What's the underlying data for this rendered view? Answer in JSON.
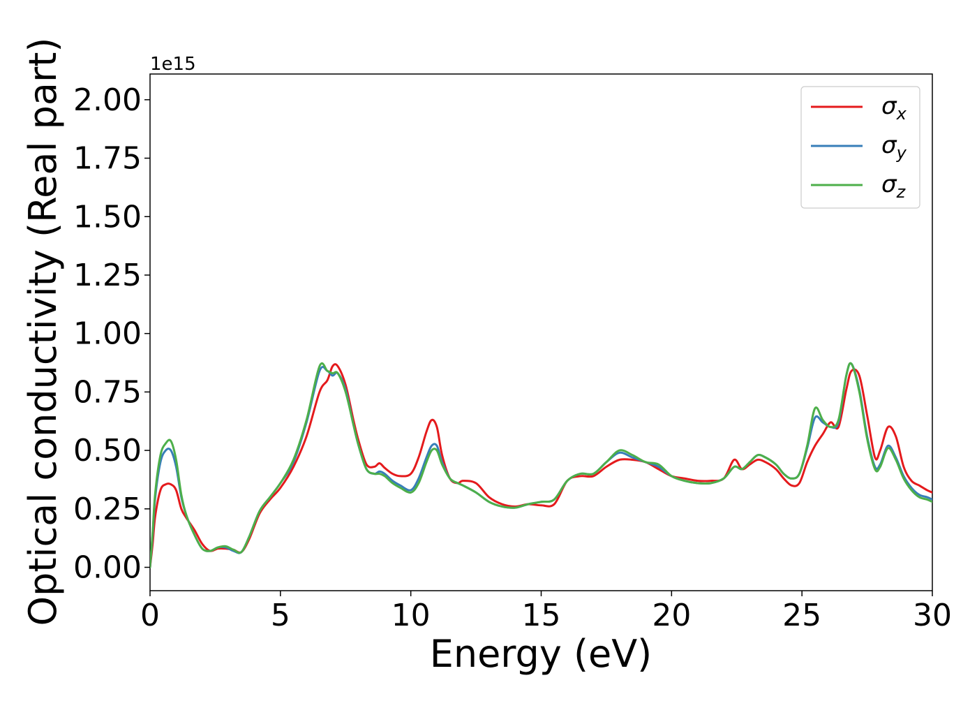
{
  "chart_data": {
    "type": "line",
    "title": "",
    "xlabel": "Energy (eV)",
    "ylabel": "Optical conductivity (Real part)",
    "y_offset_text": "1e15",
    "xlim": [
      0,
      30
    ],
    "ylim": [
      -0.1,
      2.11
    ],
    "x_ticks": [
      0,
      5,
      10,
      15,
      20,
      25,
      30
    ],
    "x_tick_labels": [
      "0",
      "5",
      "10",
      "15",
      "20",
      "25",
      "30"
    ],
    "y_ticks": [
      0,
      0.25,
      0.5,
      0.75,
      1.0,
      1.25,
      1.5,
      1.75,
      2.0
    ],
    "y_tick_labels": [
      "0.00",
      "0.25",
      "0.50",
      "0.75",
      "1.00",
      "1.25",
      "1.50",
      "1.75",
      "2.00"
    ],
    "grid": false,
    "legend_position": "top-right",
    "series": [
      {
        "name": "σx",
        "legend_base": "σ",
        "legend_sub": "x",
        "color": "#e41a1c",
        "x": [
          0,
          0.1,
          0.2,
          0.4,
          0.6,
          0.8,
          1.0,
          1.2,
          1.4,
          1.7,
          2.0,
          2.3,
          2.6,
          2.9,
          3.2,
          3.5,
          3.8,
          4.2,
          4.6,
          5.0,
          5.5,
          6.0,
          6.5,
          6.8,
          7.0,
          7.2,
          7.5,
          7.8,
          8.0,
          8.3,
          8.6,
          8.8,
          9.0,
          9.3,
          9.6,
          10.0,
          10.3,
          10.6,
          10.8,
          11.0,
          11.2,
          11.5,
          11.8,
          12.0,
          12.5,
          13.0,
          13.5,
          14.0,
          14.5,
          15.0,
          15.5,
          16.0,
          16.5,
          17.0,
          17.5,
          18.0,
          18.5,
          19.0,
          19.5,
          20.0,
          20.5,
          21.0,
          21.5,
          22.0,
          22.4,
          22.7,
          23.0,
          23.3,
          23.6,
          24.0,
          24.3,
          24.6,
          24.9,
          25.2,
          25.5,
          25.8,
          26.1,
          26.4,
          26.7,
          26.9,
          27.2,
          27.5,
          27.8,
          28.0,
          28.3,
          28.6,
          28.9,
          29.2,
          29.5,
          29.8,
          30.0
        ],
        "values": [
          0,
          0.1,
          0.22,
          0.33,
          0.355,
          0.355,
          0.33,
          0.25,
          0.21,
          0.16,
          0.1,
          0.07,
          0.08,
          0.08,
          0.075,
          0.065,
          0.12,
          0.23,
          0.29,
          0.34,
          0.43,
          0.56,
          0.75,
          0.8,
          0.86,
          0.86,
          0.78,
          0.63,
          0.54,
          0.44,
          0.43,
          0.445,
          0.425,
          0.4,
          0.39,
          0.4,
          0.47,
          0.58,
          0.63,
          0.6,
          0.48,
          0.38,
          0.36,
          0.37,
          0.36,
          0.3,
          0.27,
          0.26,
          0.27,
          0.265,
          0.27,
          0.37,
          0.39,
          0.39,
          0.43,
          0.46,
          0.46,
          0.45,
          0.42,
          0.39,
          0.38,
          0.37,
          0.37,
          0.38,
          0.46,
          0.42,
          0.44,
          0.46,
          0.45,
          0.42,
          0.38,
          0.35,
          0.36,
          0.45,
          0.52,
          0.57,
          0.62,
          0.6,
          0.76,
          0.84,
          0.82,
          0.65,
          0.47,
          0.5,
          0.6,
          0.56,
          0.43,
          0.37,
          0.35,
          0.33,
          0.32
        ]
      },
      {
        "name": "σy",
        "legend_base": "σ",
        "legend_sub": "y",
        "color": "#377eb8",
        "x": [
          0,
          0.1,
          0.2,
          0.4,
          0.6,
          0.8,
          1.0,
          1.2,
          1.4,
          1.7,
          2.0,
          2.3,
          2.6,
          2.9,
          3.2,
          3.5,
          3.8,
          4.2,
          4.6,
          5.0,
          5.5,
          6.0,
          6.5,
          6.8,
          7.0,
          7.2,
          7.5,
          7.8,
          8.0,
          8.3,
          8.6,
          8.8,
          9.0,
          9.3,
          9.6,
          10.0,
          10.3,
          10.6,
          10.8,
          11.0,
          11.2,
          11.5,
          11.8,
          12.0,
          12.5,
          13.0,
          13.5,
          14.0,
          14.5,
          15.0,
          15.5,
          16.0,
          16.5,
          17.0,
          17.5,
          18.0,
          18.5,
          19.0,
          19.5,
          20.0,
          20.5,
          21.0,
          21.5,
          22.0,
          22.4,
          22.7,
          23.0,
          23.3,
          23.6,
          24.0,
          24.3,
          24.6,
          24.9,
          25.2,
          25.5,
          25.8,
          26.1,
          26.4,
          26.7,
          26.9,
          27.2,
          27.5,
          27.8,
          28.0,
          28.3,
          28.6,
          28.9,
          29.2,
          29.5,
          29.8,
          30.0
        ],
        "values": [
          0,
          0.14,
          0.3,
          0.45,
          0.5,
          0.5,
          0.43,
          0.3,
          0.22,
          0.14,
          0.08,
          0.07,
          0.085,
          0.085,
          0.07,
          0.065,
          0.13,
          0.24,
          0.3,
          0.36,
          0.45,
          0.62,
          0.84,
          0.84,
          0.82,
          0.83,
          0.76,
          0.61,
          0.52,
          0.42,
          0.4,
          0.41,
          0.4,
          0.37,
          0.35,
          0.33,
          0.38,
          0.47,
          0.52,
          0.52,
          0.45,
          0.38,
          0.36,
          0.35,
          0.32,
          0.28,
          0.26,
          0.255,
          0.27,
          0.28,
          0.29,
          0.37,
          0.4,
          0.4,
          0.45,
          0.49,
          0.47,
          0.45,
          0.43,
          0.39,
          0.37,
          0.36,
          0.36,
          0.38,
          0.43,
          0.42,
          0.45,
          0.48,
          0.47,
          0.44,
          0.4,
          0.38,
          0.4,
          0.51,
          0.64,
          0.62,
          0.6,
          0.62,
          0.82,
          0.87,
          0.76,
          0.56,
          0.43,
          0.44,
          0.52,
          0.47,
          0.39,
          0.34,
          0.31,
          0.3,
          0.29
        ]
      },
      {
        "name": "σz",
        "legend_base": "σ",
        "legend_sub": "z",
        "color": "#4daf4a",
        "x": [
          0,
          0.1,
          0.2,
          0.4,
          0.6,
          0.8,
          1.0,
          1.2,
          1.4,
          1.7,
          2.0,
          2.3,
          2.6,
          2.9,
          3.2,
          3.5,
          3.8,
          4.2,
          4.6,
          5.0,
          5.5,
          6.0,
          6.5,
          6.8,
          7.0,
          7.2,
          7.5,
          7.8,
          8.0,
          8.3,
          8.6,
          8.8,
          9.0,
          9.3,
          9.6,
          10.0,
          10.3,
          10.6,
          10.8,
          11.0,
          11.2,
          11.5,
          11.8,
          12.0,
          12.5,
          13.0,
          13.5,
          14.0,
          14.5,
          15.0,
          15.5,
          16.0,
          16.5,
          17.0,
          17.5,
          18.0,
          18.5,
          19.0,
          19.5,
          20.0,
          20.5,
          21.0,
          21.5,
          22.0,
          22.4,
          22.7,
          23.0,
          23.3,
          23.6,
          24.0,
          24.3,
          24.6,
          24.9,
          25.2,
          25.5,
          25.8,
          26.1,
          26.4,
          26.7,
          26.9,
          27.2,
          27.5,
          27.8,
          28.0,
          28.3,
          28.6,
          28.9,
          29.2,
          29.5,
          29.8,
          30.0
        ],
        "values": [
          0,
          0.15,
          0.32,
          0.48,
          0.53,
          0.54,
          0.46,
          0.31,
          0.22,
          0.14,
          0.08,
          0.07,
          0.085,
          0.09,
          0.075,
          0.065,
          0.13,
          0.24,
          0.3,
          0.36,
          0.46,
          0.63,
          0.86,
          0.84,
          0.83,
          0.83,
          0.75,
          0.61,
          0.52,
          0.42,
          0.4,
          0.4,
          0.39,
          0.36,
          0.34,
          0.32,
          0.36,
          0.45,
          0.5,
          0.5,
          0.44,
          0.38,
          0.36,
          0.35,
          0.32,
          0.28,
          0.26,
          0.255,
          0.27,
          0.28,
          0.29,
          0.37,
          0.4,
          0.4,
          0.45,
          0.5,
          0.48,
          0.45,
          0.44,
          0.39,
          0.37,
          0.36,
          0.36,
          0.38,
          0.43,
          0.42,
          0.45,
          0.48,
          0.47,
          0.44,
          0.4,
          0.38,
          0.4,
          0.52,
          0.68,
          0.63,
          0.6,
          0.63,
          0.82,
          0.87,
          0.75,
          0.55,
          0.42,
          0.43,
          0.51,
          0.46,
          0.38,
          0.33,
          0.3,
          0.29,
          0.28
        ]
      }
    ]
  }
}
